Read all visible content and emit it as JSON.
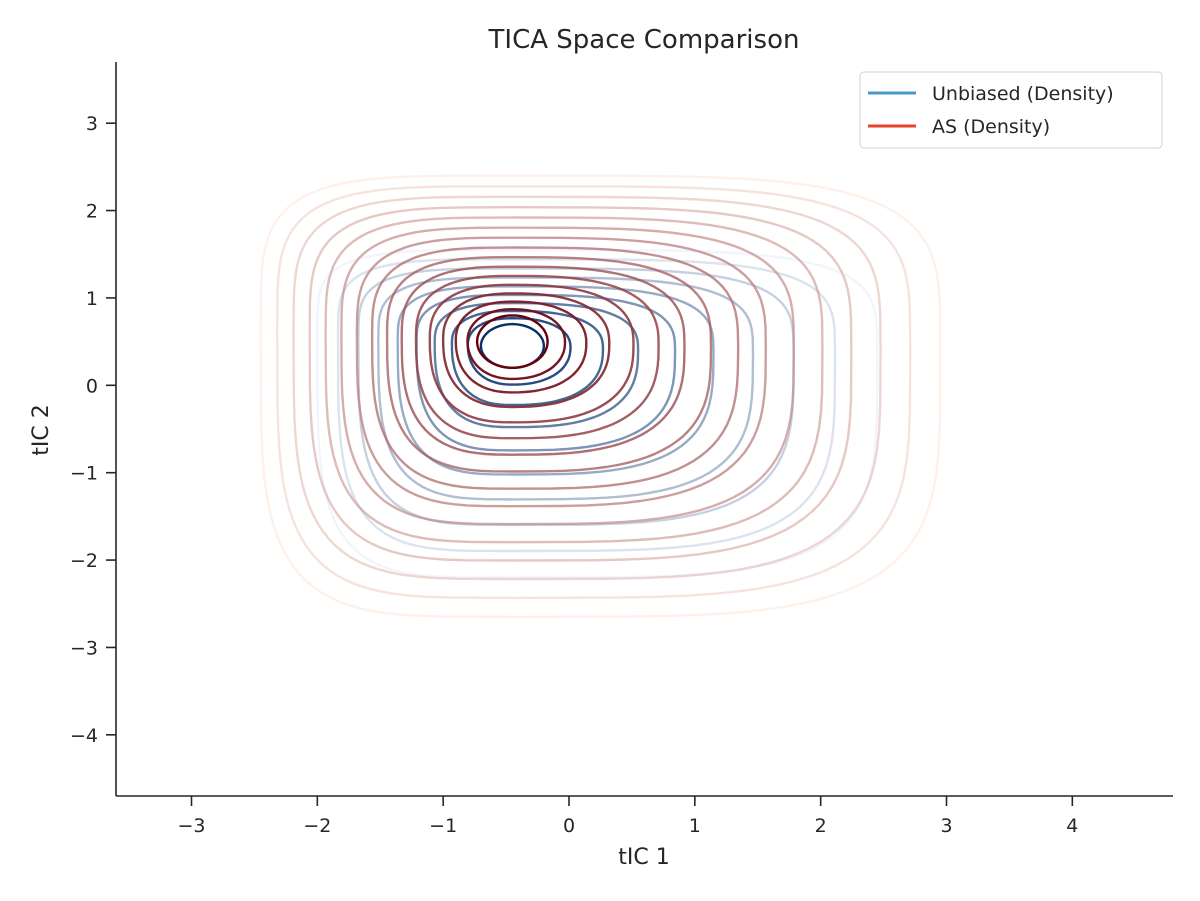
{
  "chart_data": {
    "type": "contour",
    "title": "TICA Space Comparison",
    "xlabel": "tIC 1",
    "ylabel": "tIC 2",
    "xlim": [
      -3.6,
      4.8
    ],
    "ylim": [
      -4.7,
      3.7
    ],
    "xticks": [
      {
        "value": -3,
        "label": "−3"
      },
      {
        "value": -2,
        "label": "−2"
      },
      {
        "value": -1,
        "label": "−1"
      },
      {
        "value": 0,
        "label": "0"
      },
      {
        "value": 1,
        "label": "1"
      },
      {
        "value": 2,
        "label": "2"
      },
      {
        "value": 3,
        "label": "3"
      },
      {
        "value": 4,
        "label": "4"
      }
    ],
    "yticks": [
      {
        "value": 3,
        "label": "3"
      },
      {
        "value": 2,
        "label": "2"
      },
      {
        "value": 1,
        "label": "1"
      },
      {
        "value": 0,
        "label": "0"
      },
      {
        "value": -1,
        "label": "−1"
      },
      {
        "value": -2,
        "label": "−2"
      },
      {
        "value": -3,
        "label": "−3"
      },
      {
        "value": -4,
        "label": "−4"
      }
    ],
    "grid": false,
    "legend_position": "top-right",
    "series": [
      {
        "name": "Unbiased (Density)",
        "legend_color": "#4a98c9",
        "peak": [
          -0.45,
          0.45
        ],
        "levels": 10,
        "inner_radius": [
          0.25,
          0.25
        ],
        "outer_extent": {
          "left": -2.0,
          "right": 2.45,
          "top": 1.55,
          "bottom": -2.2
        },
        "color_light": "#e3eef9",
        "color_dark": "#08306b"
      },
      {
        "name": "AS (Density)",
        "legend_color": "#e8412e",
        "peak": [
          -0.45,
          0.5
        ],
        "levels": 16,
        "inner_radius": [
          0.28,
          0.3
        ],
        "outer_extent": {
          "left": -2.45,
          "right": 2.95,
          "top": 2.4,
          "bottom": -2.65
        },
        "color_light": "#fee5d9",
        "color_dark": "#67000d"
      }
    ]
  }
}
